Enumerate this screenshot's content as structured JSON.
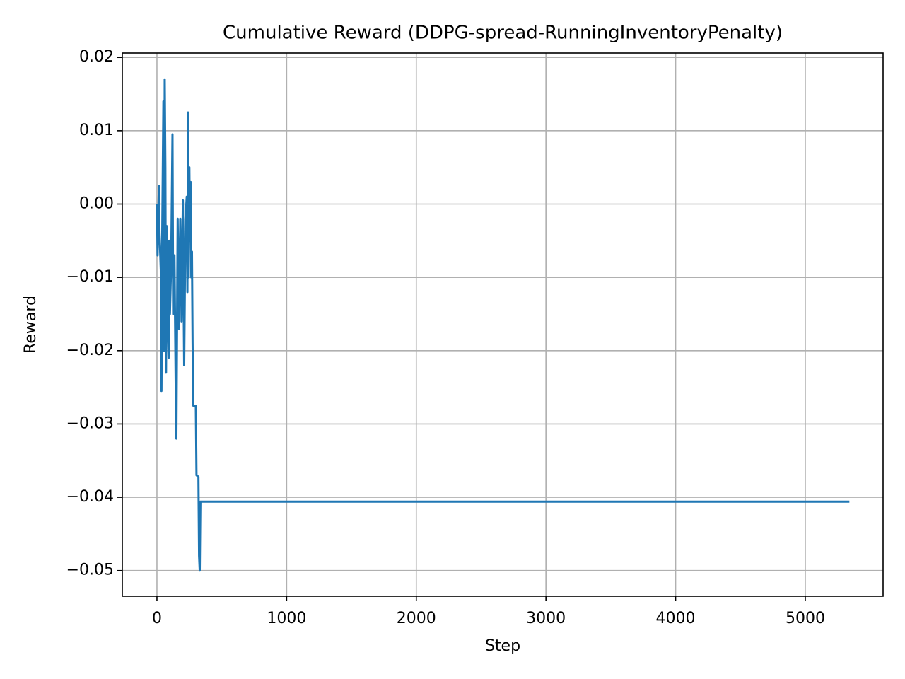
{
  "chart_data": {
    "type": "line",
    "title": "Cumulative Reward (DDPG-spread-RunningInventoryPenalty)",
    "xlabel": "Step",
    "ylabel": "Reward",
    "grid": true,
    "xlim": [
      -267,
      5600
    ],
    "ylim": [
      -0.0535,
      0.0206
    ],
    "xticks": [
      0,
      1000,
      2000,
      3000,
      4000,
      5000
    ],
    "yticks": [
      {
        "value": -0.05,
        "label": "−0.05"
      },
      {
        "value": -0.04,
        "label": "−0.04"
      },
      {
        "value": -0.03,
        "label": "−0.03"
      },
      {
        "value": -0.02,
        "label": "−0.02"
      },
      {
        "value": -0.01,
        "label": "−0.01"
      },
      {
        "value": 0,
        "label": "0.00"
      },
      0.01,
      0.02
    ],
    "series": [
      {
        "color": "#1f77b4",
        "x": [
          0,
          5,
          15,
          20,
          30,
          35,
          40,
          50,
          55,
          60,
          65,
          70,
          75,
          80,
          90,
          95,
          100,
          110,
          120,
          125,
          135,
          145,
          150,
          160,
          170,
          180,
          190,
          200,
          210,
          220,
          230,
          235,
          240,
          245,
          250,
          255,
          260,
          265,
          270,
          275,
          280,
          300,
          305,
          320,
          325,
          330,
          335,
          5340
        ],
        "values": [
          0,
          -0.007,
          0.0025,
          -0.004,
          -0.009,
          -0.0255,
          -0.006,
          0.014,
          -0.02,
          0.017,
          0.005,
          -0.023,
          -0.003,
          -0.012,
          -0.021,
          -0.005,
          -0.015,
          -0.008,
          0.0095,
          -0.015,
          -0.007,
          -0.025,
          -0.032,
          -0.002,
          -0.017,
          -0.002,
          -0.016,
          0.0005,
          -0.022,
          -0.002,
          0.001,
          -0.012,
          0.0125,
          -0.01,
          0.005,
          -0.005,
          0.003,
          -0.01,
          -0.0065,
          -0.019,
          -0.0275,
          -0.0275,
          -0.037,
          -0.0372,
          -0.048,
          -0.05,
          -0.0406,
          -0.0406
        ]
      }
    ]
  }
}
